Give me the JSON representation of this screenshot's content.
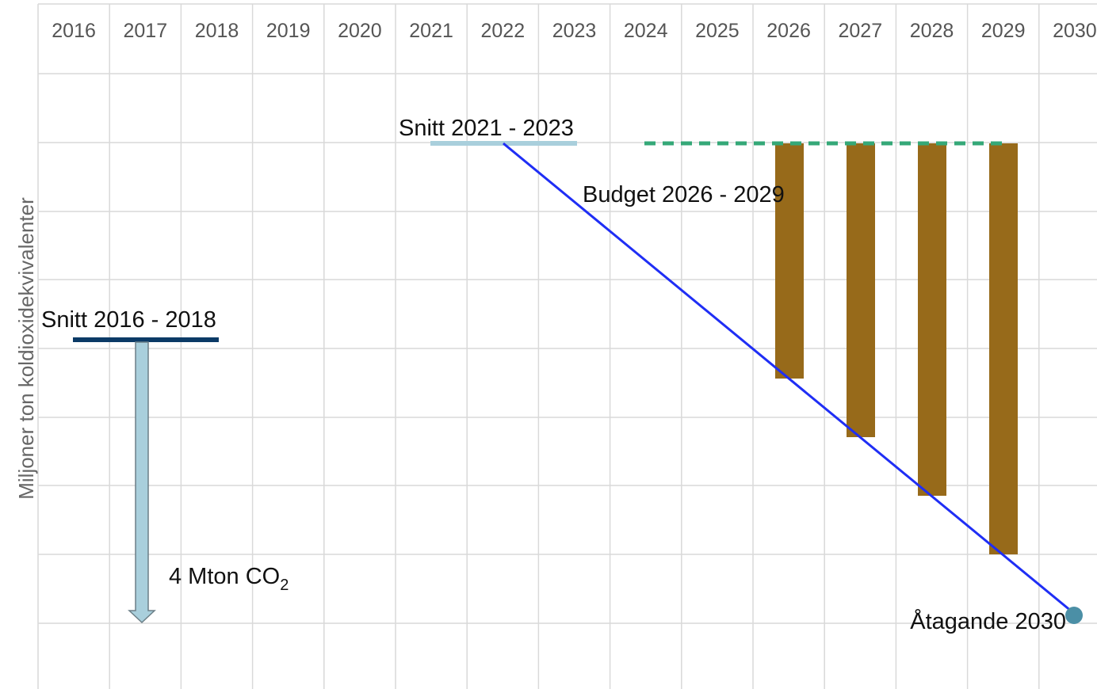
{
  "years": [
    "2016",
    "2017",
    "2018",
    "2019",
    "2020",
    "2021",
    "2022",
    "2023",
    "2024",
    "2025",
    "2026",
    "2027",
    "2028",
    "2029",
    "2030"
  ],
  "y_axis_label": "Miljoner ton koldioxidekvivalenter",
  "annotations": {
    "avg_2016_2018": "Snitt 2016 - 2018",
    "avg_2021_2023": "Snitt 2021 - 2023",
    "budget": "Budget 2026 - 2029",
    "commitment": "Åtagande 2030",
    "reduction": {
      "text": "4 Mton CO",
      "sub": "2"
    }
  }
}
